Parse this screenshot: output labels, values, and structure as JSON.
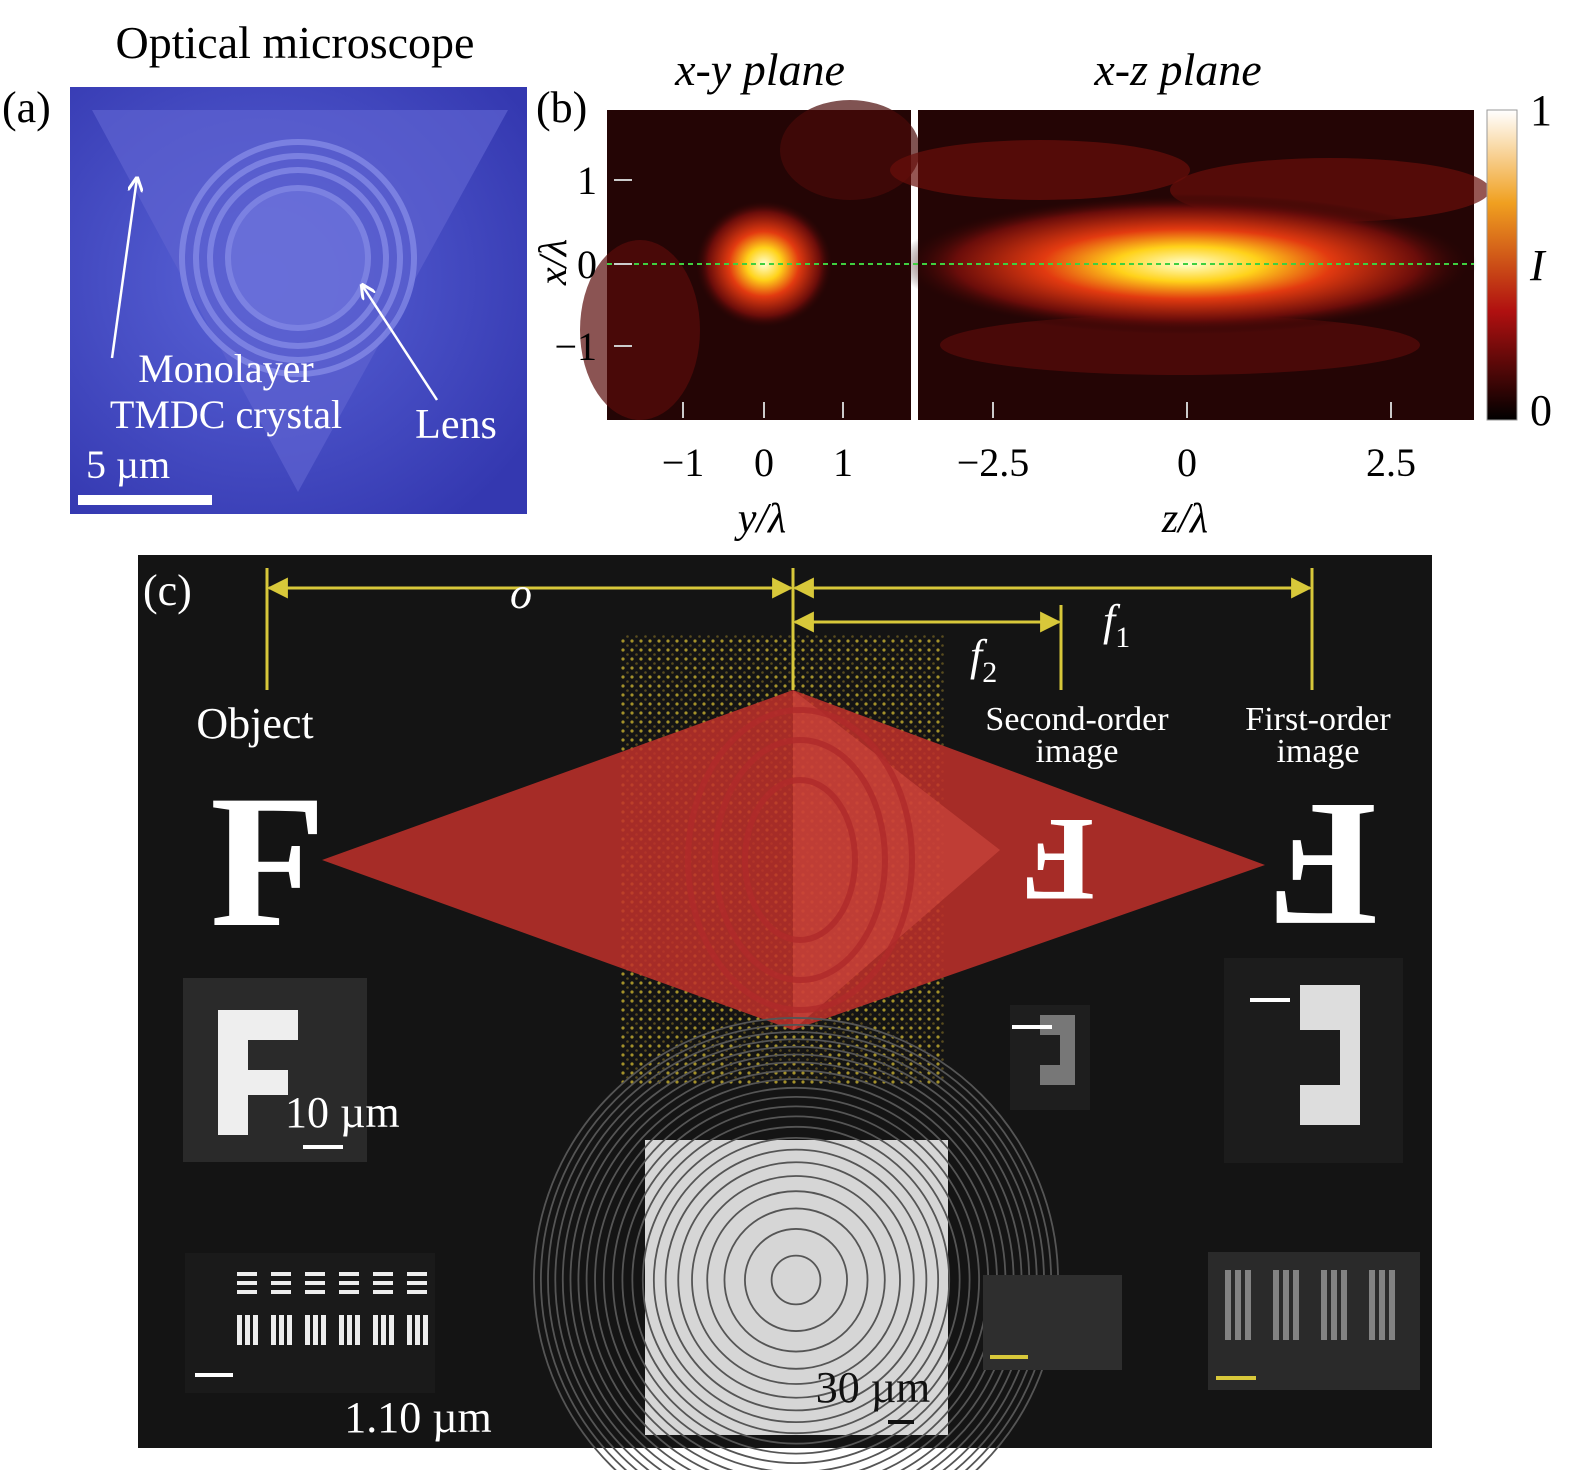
{
  "panel_a": {
    "label": "(a)",
    "title": "Optical microscope",
    "annotation_crystal_1": "Monolayer",
    "annotation_crystal_2": "TMDC crystal",
    "annotation_lens": "Lens",
    "scale_bar": "5 µm"
  },
  "panel_b": {
    "label": "(b)",
    "title_left": "x-y plane",
    "title_right": "x-z plane",
    "y_axis_label": "x/λ",
    "y_ticks": [
      "1",
      "0",
      "−1"
    ],
    "x_ticks_left": [
      "−1",
      "0",
      "1"
    ],
    "x_label_left": "y/λ",
    "x_ticks_right": [
      "−2.5",
      "0",
      "2.5"
    ],
    "x_label_right": "z/λ",
    "colorbar_max": "1",
    "colorbar_min": "0",
    "colorbar_label": "I"
  },
  "panel_c": {
    "label": "(c)",
    "object_distance": "o",
    "f1": {
      "symbol": "f",
      "subscript": "1"
    },
    "f2": {
      "symbol": "f",
      "subscript": "2"
    },
    "object_label": "Object",
    "second_order_1": "Second-order",
    "second_order_2": "image",
    "first_order_1": "First-order",
    "first_order_2": "image",
    "letters": [
      "F",
      "F",
      "F"
    ],
    "scale_f": "10 µm",
    "scale_target": "1.10 µm",
    "scale_lens": "30 µm"
  }
}
